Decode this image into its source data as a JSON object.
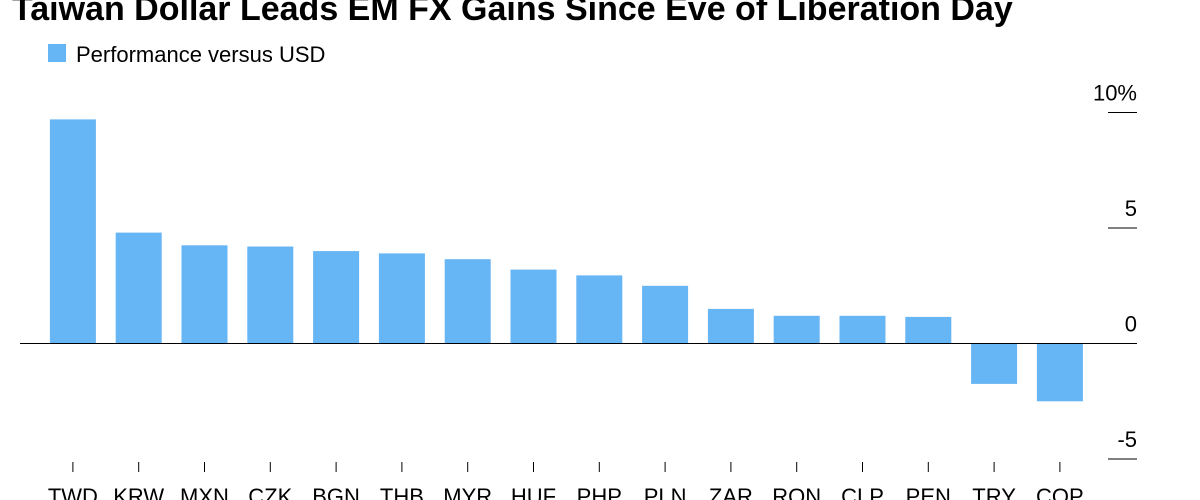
{
  "chart_data": {
    "type": "bar",
    "title": "Taiwan Dollar Leads EM FX Gains Since Eve of Liberation Day",
    "legend": [
      "Performance versus USD"
    ],
    "legend_position": "top-left",
    "categories": [
      "TWD",
      "KRW",
      "MXN",
      "CZK",
      "BGN",
      "THB",
      "MYR",
      "HUF",
      "PHP",
      "PLN",
      "ZAR",
      "RON",
      "CLP",
      "PEN",
      "TRY",
      "COP"
    ],
    "series": [
      {
        "name": "Performance versus USD",
        "values": [
          9.7,
          4.8,
          4.25,
          4.2,
          4.0,
          3.9,
          3.65,
          3.2,
          2.95,
          2.5,
          1.5,
          1.2,
          1.2,
          1.15,
          -1.75,
          -2.5
        ],
        "color": "#66b5f4"
      }
    ],
    "y_axis": {
      "ticks": [
        -5,
        0,
        5,
        10
      ],
      "tick_labels": [
        "-5",
        "0",
        "5",
        "10%"
      ],
      "ylim": [
        -5,
        10
      ],
      "position": "right"
    },
    "grid": false
  }
}
